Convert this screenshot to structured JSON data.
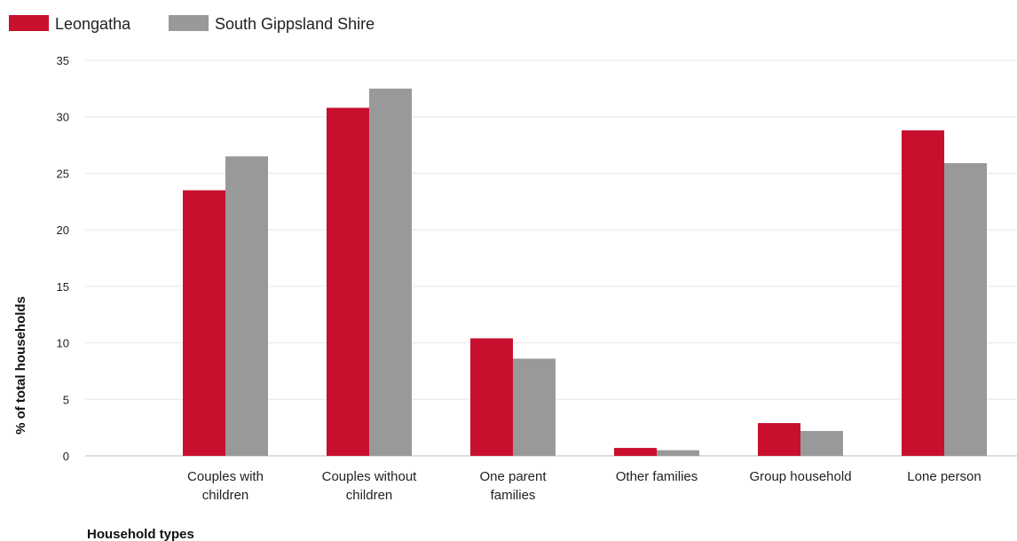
{
  "chart_data": {
    "type": "bar",
    "xlabel": "Household types",
    "ylabel": "% of total households",
    "ylim": [
      0,
      35
    ],
    "yticks": [
      0,
      5,
      10,
      15,
      20,
      25,
      30,
      35
    ],
    "grid": true,
    "legend_position": "top-left",
    "categories": [
      [
        "Couples with",
        "children"
      ],
      [
        "Couples without",
        "children"
      ],
      [
        "One parent",
        "families"
      ],
      [
        "Other families"
      ],
      [
        "Group household"
      ],
      [
        "Lone person"
      ]
    ],
    "series": [
      {
        "name": "Leongatha",
        "color": "#c8102e",
        "values": [
          23.5,
          30.8,
          10.4,
          0.7,
          2.9,
          28.8
        ]
      },
      {
        "name": "South Gippsland Shire",
        "color": "#999999",
        "values": [
          26.5,
          32.5,
          8.6,
          0.5,
          2.2,
          25.9
        ]
      }
    ]
  }
}
